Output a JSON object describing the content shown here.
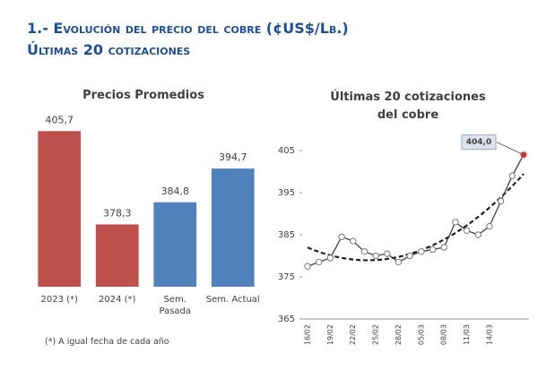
{
  "header": {
    "title": "1.- Evolución del precio del cobre (¢US$/Lb.)",
    "subtitle": "Últimas 20 cotizaciones"
  },
  "chart_data": [
    {
      "type": "bar",
      "title": "Precios Promedios",
      "categories": [
        "2023 (*)",
        "2024 (*)",
        "Sem. Pasada",
        "Sem. Actual"
      ],
      "values": [
        405.7,
        378.3,
        384.8,
        394.7
      ],
      "value_labels": [
        "405,7",
        "378,3",
        "384,8",
        "394,7"
      ],
      "colors": [
        "#c0504d",
        "#c0504d",
        "#4f81bd",
        "#4f81bd"
      ],
      "ylim": [
        360,
        410
      ],
      "note": "(*) A igual fecha de cada año"
    },
    {
      "type": "line",
      "title": "Últimas 20 cotizaciones del cobre",
      "categories": [
        "16/02",
        null,
        "19/02",
        null,
        "22/02",
        null,
        "25/02",
        null,
        "28/02",
        null,
        "05/03",
        null,
        "08/03",
        null,
        "11/03",
        null,
        "14/03",
        null,
        null,
        null
      ],
      "series": [
        {
          "color": "#404040",
          "highlight_color": "#e03030",
          "values": [
            377.5,
            378.5,
            379.5,
            384.5,
            383.5,
            381,
            380,
            380.5,
            378.5,
            380,
            381,
            381.5,
            382,
            388,
            386,
            385,
            387,
            393,
            399,
            404
          ],
          "value_labels": [
            null,
            null,
            null,
            null,
            null,
            null,
            null,
            null,
            null,
            null,
            null,
            null,
            null,
            null,
            null,
            null,
            null,
            null,
            null,
            "404,0"
          ]
        }
      ],
      "ylim": [
        365,
        405
      ],
      "yticks": [
        365,
        375,
        385,
        395,
        405
      ],
      "trendline": true
    }
  ]
}
